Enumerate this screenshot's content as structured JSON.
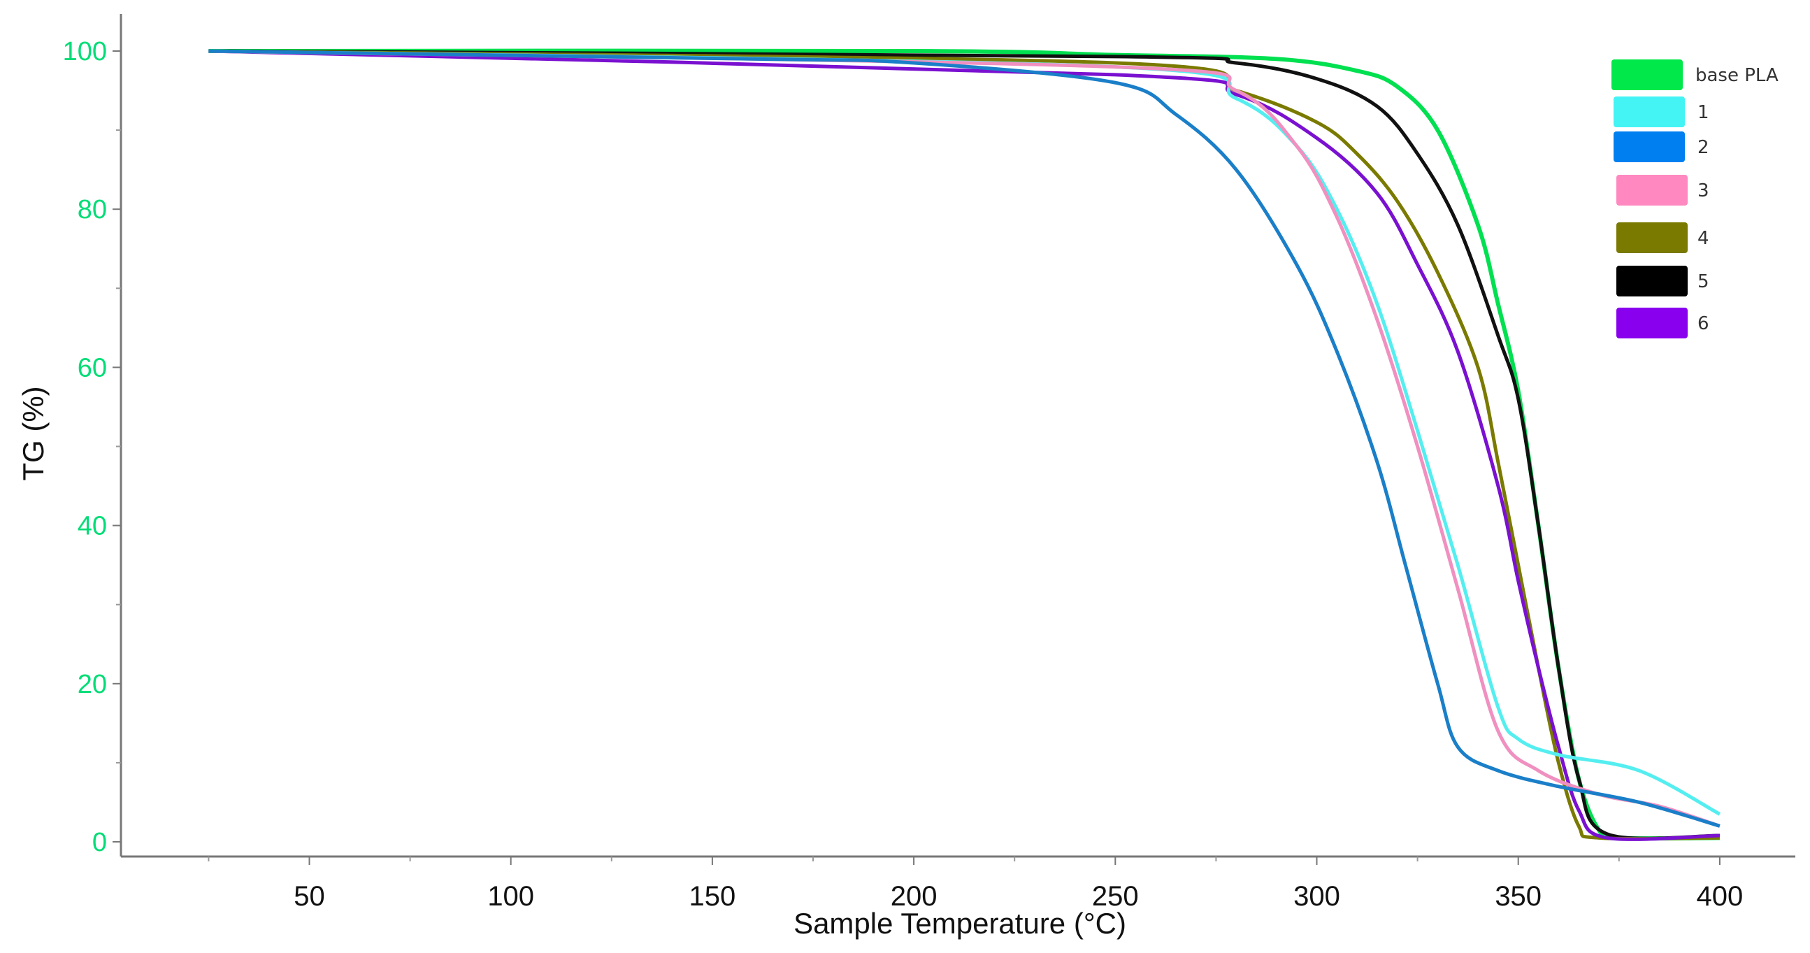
{
  "chart_data": {
    "type": "line",
    "title": "",
    "xlabel": "Sample Temperature (°C)",
    "ylabel": "TG (%)",
    "xlim": [
      5,
      420
    ],
    "ylim": [
      -2,
      105
    ],
    "xticks": [
      50,
      100,
      150,
      200,
      250,
      300,
      350,
      400
    ],
    "yticks": [
      0,
      20,
      40,
      60,
      80,
      100
    ],
    "grid": false,
    "legend_position": "upper right",
    "series": [
      {
        "name": "base PLA",
        "color": "#00e050",
        "x": [
          25,
          200,
          250,
          290,
          310,
          320,
          330,
          340,
          345,
          350,
          355,
          360,
          365,
          370,
          375,
          400
        ],
        "y": [
          100,
          100,
          99.5,
          99,
          97.5,
          95.5,
          90,
          78,
          68,
          57,
          40,
          22,
          8,
          1.5,
          0.5,
          0.5
        ]
      },
      {
        "name": "1",
        "color": "#55eef0",
        "x": [
          25,
          250,
          280,
          295,
          305,
          315,
          325,
          335,
          345,
          350,
          360,
          380,
          400
        ],
        "y": [
          100,
          98,
          94,
          88,
          80,
          68,
          52,
          35,
          17,
          13,
          11,
          9,
          3.5
        ]
      },
      {
        "name": "2",
        "color": "#1a7fc8",
        "x": [
          25,
          160,
          200,
          250,
          265,
          280,
          295,
          305,
          315,
          322,
          330,
          335,
          345,
          360,
          380,
          400
        ],
        "y": [
          100,
          99,
          98.5,
          96,
          92,
          85,
          73,
          62,
          48,
          35,
          20,
          12,
          9,
          7,
          5,
          2
        ]
      },
      {
        "name": "3",
        "color": "#f090c0",
        "x": [
          25,
          250,
          280,
          295,
          305,
          315,
          325,
          335,
          345,
          355,
          370,
          385,
          400
        ],
        "y": [
          100,
          98,
          95,
          88,
          79,
          66,
          50,
          32,
          14,
          9,
          6,
          4.5,
          2
        ]
      },
      {
        "name": "4",
        "color": "#7a7a00",
        "x": [
          25,
          250,
          280,
          300,
          310,
          320,
          330,
          340,
          345,
          350,
          355,
          360,
          365,
          370,
          400
        ],
        "y": [
          100,
          98.5,
          95,
          91,
          87,
          81,
          72,
          60,
          48,
          35,
          22,
          10,
          2,
          0.5,
          0.5
        ]
      },
      {
        "name": "5",
        "color": "#111111",
        "x": [
          25,
          250,
          280,
          300,
          315,
          325,
          335,
          345,
          350,
          355,
          360,
          365,
          372,
          400
        ],
        "y": [
          100,
          99.3,
          98.5,
          96.5,
          93,
          87,
          78,
          64,
          56,
          40,
          22,
          8,
          1,
          0.8
        ]
      },
      {
        "name": "6",
        "color": "#7a10d0",
        "x": [
          25,
          250,
          280,
          300,
          315,
          325,
          335,
          345,
          350,
          355,
          360,
          365,
          372,
          400
        ],
        "y": [
          100,
          97,
          94.5,
          89,
          82,
          73,
          62,
          45,
          33,
          22,
          12,
          4,
          0.5,
          0.8
        ]
      }
    ]
  },
  "legend": {
    "items": [
      {
        "label": "base PLA",
        "color": "#00e84a"
      },
      {
        "label": "1",
        "color": "#44f4f4"
      },
      {
        "label": "2",
        "color": "#0080f0"
      },
      {
        "label": "3",
        "color": "#ff88c0"
      },
      {
        "label": "4",
        "color": "#7a7a00"
      },
      {
        "label": "5",
        "color": "#000000"
      },
      {
        "label": "6",
        "color": "#8800ee"
      }
    ]
  },
  "axes": {
    "xlabel": "Sample Temperature (°C)",
    "ylabel": "TG (%)"
  }
}
